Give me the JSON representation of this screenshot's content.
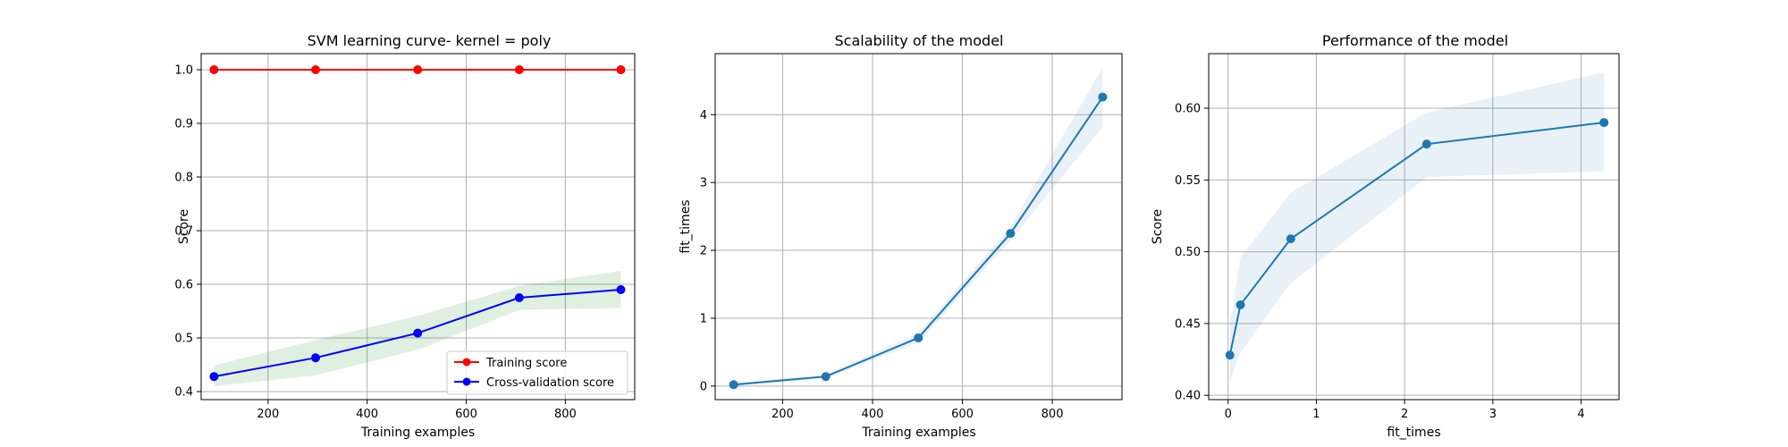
{
  "chart_data": [
    {
      "type": "line",
      "title": "SVM learning curve- kernel = poly",
      "xlabel": "Training examples",
      "ylabel": "Score",
      "xlim": [
        65,
        940
      ],
      "ylim": [
        0.385,
        1.03
      ],
      "xticks": [
        200,
        400,
        600,
        800
      ],
      "yticks": [
        0.4,
        0.5,
        0.6,
        0.7,
        0.8,
        0.9,
        1.0
      ],
      "ytick_decimals": 1,
      "grid": true,
      "legend": "lower-right",
      "series": [
        {
          "name": "Training score",
          "color": "#ff0000",
          "x": [
            91,
            296,
            502,
            707,
            912
          ],
          "y": [
            1.0,
            1.0,
            1.0,
            1.0,
            1.0
          ],
          "band_lower": [
            1.0,
            1.0,
            1.0,
            1.0,
            1.0
          ],
          "band_upper": [
            1.0,
            1.0,
            1.0,
            1.0,
            1.0
          ],
          "band_color": "#ff0000",
          "band_opacity": 0.1
        },
        {
          "name": "Cross-validation score",
          "color": "#0000ff",
          "x": [
            91,
            296,
            502,
            707,
            912
          ],
          "y": [
            0.428,
            0.463,
            0.509,
            0.575,
            0.59
          ],
          "band_lower": [
            0.41,
            0.43,
            0.478,
            0.552,
            0.556
          ],
          "band_upper": [
            0.449,
            0.496,
            0.541,
            0.597,
            0.625
          ],
          "band_color": "#008000",
          "band_opacity": 0.12
        }
      ]
    },
    {
      "type": "line",
      "title": "Scalability of the model",
      "xlabel": "Training examples",
      "ylabel": "fit_times",
      "xlim": [
        50,
        955
      ],
      "ylim": [
        -0.2,
        4.9
      ],
      "xticks": [
        200,
        400,
        600,
        800
      ],
      "yticks": [
        0,
        1,
        2,
        3,
        4
      ],
      "ytick_decimals": 0,
      "grid": true,
      "series": [
        {
          "color": "#1f77b4",
          "x": [
            91,
            296,
            502,
            707,
            912
          ],
          "y": [
            0.02,
            0.14,
            0.71,
            2.25,
            4.26
          ],
          "band_lower": [
            0.0,
            0.12,
            0.64,
            2.15,
            3.82
          ],
          "band_upper": [
            0.04,
            0.17,
            0.78,
            2.35,
            4.7
          ],
          "band_color": "#1f77b4",
          "band_opacity": 0.1
        }
      ]
    },
    {
      "type": "line",
      "title": "Performance of the model",
      "xlabel": "fit_times",
      "ylabel": "Score",
      "xlim": [
        -0.22,
        4.43
      ],
      "ylim": [
        0.397,
        0.638
      ],
      "xticks": [
        0,
        1,
        2,
        3,
        4
      ],
      "yticks": [
        0.4,
        0.45,
        0.5,
        0.55,
        0.6
      ],
      "ytick_decimals": 2,
      "grid": true,
      "series": [
        {
          "color": "#1f77b4",
          "x": [
            0.02,
            0.14,
            0.71,
            2.25,
            4.26
          ],
          "y": [
            0.428,
            0.463,
            0.509,
            0.575,
            0.59
          ],
          "band_lower": [
            0.41,
            0.43,
            0.478,
            0.552,
            0.556
          ],
          "band_upper": [
            0.449,
            0.496,
            0.541,
            0.597,
            0.625
          ],
          "band_color": "#1f77b4",
          "band_opacity": 0.1
        }
      ]
    }
  ]
}
